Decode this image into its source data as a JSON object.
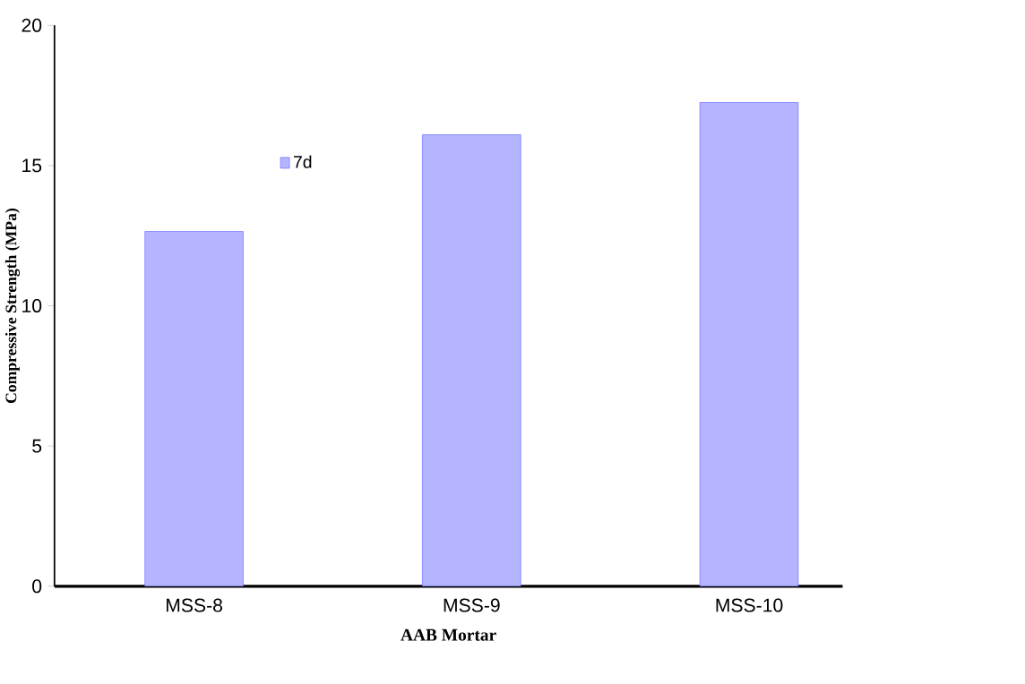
{
  "chart_data": {
    "type": "bar",
    "xlabel": "AAB Mortar",
    "ylabel": "Compressive Strength (MPa)",
    "categories": [
      "MSS-8",
      "MSS-9",
      "MSS-10"
    ],
    "series": [
      {
        "name": "7d",
        "color": "#b5b5ff",
        "values": [
          12.65,
          16.1,
          17.25
        ]
      }
    ],
    "ylim": [
      0,
      20
    ],
    "yticks": [
      0,
      5,
      10,
      15,
      20
    ],
    "legend": "top left"
  }
}
